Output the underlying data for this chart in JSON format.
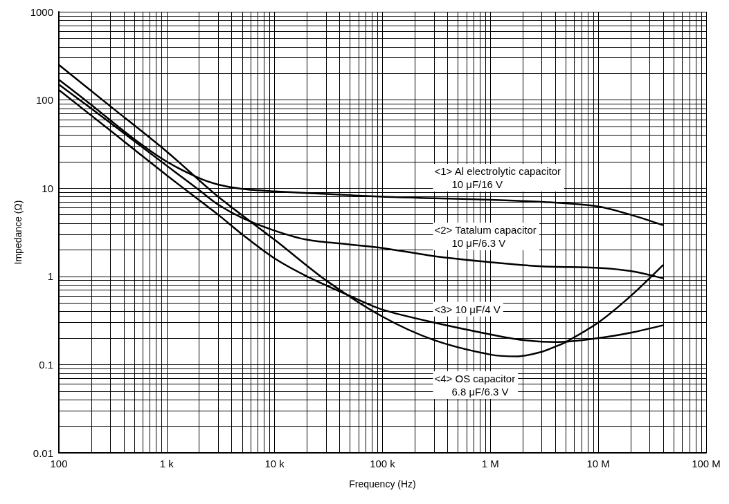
{
  "chart_data": {
    "type": "line",
    "xlabel": "Frequency (Hz)",
    "ylabel": "Impedance (Ω)",
    "log": "xy",
    "grid": true,
    "legend": false,
    "marker": "none",
    "line_style": "solid",
    "xlim": [
      100,
      100000000
    ],
    "xticks": [
      {
        "value": 100,
        "label": "100"
      },
      {
        "value": 1000,
        "label": "1 k"
      },
      {
        "value": 10000,
        "label": "10 k"
      },
      {
        "value": 100000,
        "label": "100 k"
      },
      {
        "value": 1000000,
        "label": "1 M"
      },
      {
        "value": 10000000,
        "label": "10 M"
      },
      {
        "value": 100000000,
        "label": "100 M"
      }
    ],
    "ylim": [
      0.01,
      1000
    ],
    "yticks": [
      0.01,
      0.1,
      1,
      10,
      100,
      1000
    ],
    "series": [
      {
        "name": "<1> Al electrolytic capacitor\n10 μF/16 V",
        "color": "#000000",
        "x": [
          100,
          200,
          500,
          1000,
          2000,
          3000,
          5000,
          10000,
          30000,
          100000,
          300000,
          1000000,
          3000000,
          10000000,
          20000000,
          40000000
        ],
        "values": [
          170,
          88,
          36,
          20,
          13,
          11,
          9.8,
          9.2,
          8.6,
          8,
          7.7,
          7.4,
          7,
          6.2,
          5,
          3.8
        ]
      },
      {
        "name": "<2> Tatalum capacitor\n10 μF/6.3 V",
        "color": "#000000",
        "x": [
          100,
          300,
          1000,
          2000,
          3000,
          5000,
          10000,
          20000,
          50000,
          100000,
          300000,
          1000000,
          3000000,
          10000000,
          20000000,
          40000000
        ],
        "values": [
          150,
          55,
          18,
          9.5,
          6.5,
          4.6,
          3.3,
          2.6,
          2.3,
          2.1,
          1.7,
          1.45,
          1.3,
          1.25,
          1.15,
          0.95
        ]
      },
      {
        "name": "<3> 10 μF/4 V",
        "color": "#000000",
        "x": [
          100,
          300,
          1000,
          3000,
          5000,
          10000,
          20000,
          50000,
          100000,
          300000,
          1000000,
          2000000,
          4000000,
          10000000,
          20000000,
          40000000
        ],
        "values": [
          130,
          45,
          14,
          5,
          3,
          1.6,
          1,
          0.6,
          0.42,
          0.3,
          0.22,
          0.19,
          0.18,
          0.2,
          0.23,
          0.28
        ]
      },
      {
        "name": "<4> OS capacitor\n6.8 μF/6.3 V",
        "color": "#000000",
        "x": [
          100,
          300,
          1000,
          3000,
          10000,
          30000,
          100000,
          300000,
          1000000,
          1800000,
          3000000,
          4000000,
          5000000,
          10000000,
          20000000,
          40000000
        ],
        "values": [
          250,
          85,
          26,
          8,
          2.6,
          0.9,
          0.35,
          0.19,
          0.13,
          0.124,
          0.14,
          0.16,
          0.18,
          0.3,
          0.6,
          1.35
        ]
      }
    ]
  }
}
